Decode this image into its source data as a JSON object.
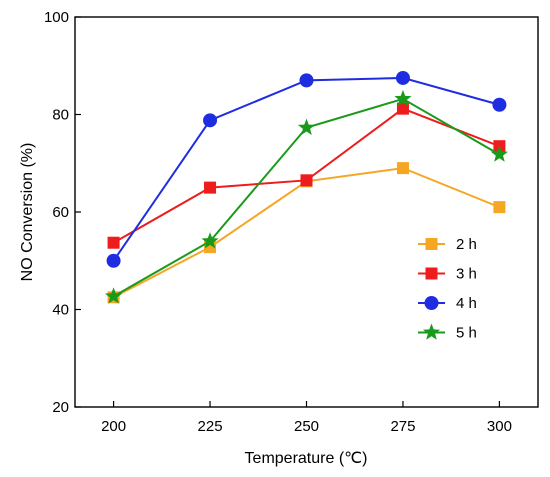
{
  "chart_data": {
    "type": "line",
    "title": "",
    "xlabel": "Temperature (℃)",
    "ylabel": "NO Conversion (%)",
    "x": [
      200,
      225,
      250,
      275,
      300
    ],
    "xticks": [
      "200",
      "225",
      "250",
      "275",
      "300"
    ],
    "xlim": [
      190,
      310
    ],
    "ylim": [
      20,
      100
    ],
    "yticks": [
      "20",
      "40",
      "60",
      "80",
      "100"
    ],
    "grid": false,
    "legend_position": "right-center",
    "series": [
      {
        "name": "2 h",
        "color": "#f5a623",
        "marker": "square",
        "values": [
          42.5,
          52.8,
          66.3,
          69.0,
          61.0
        ]
      },
      {
        "name": "3 h",
        "color": "#ee1c1c",
        "marker": "square",
        "values": [
          53.7,
          65.0,
          66.5,
          81.2,
          73.5
        ]
      },
      {
        "name": "4 h",
        "color": "#1f2de0",
        "marker": "circle",
        "values": [
          50.0,
          78.8,
          87.0,
          87.5,
          82.0
        ]
      },
      {
        "name": "5 h",
        "color": "#1a9a1a",
        "marker": "star",
        "values": [
          42.7,
          54.0,
          77.3,
          83.2,
          71.8
        ]
      }
    ]
  }
}
